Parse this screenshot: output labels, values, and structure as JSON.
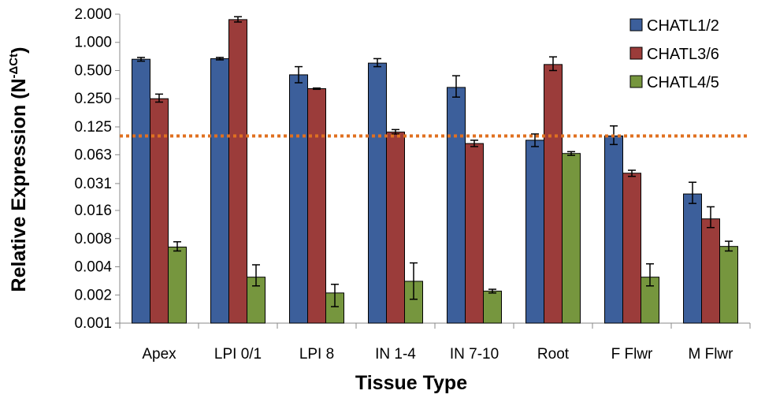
{
  "chart_data": {
    "type": "bar",
    "title": "",
    "xlabel": "Tissue Type",
    "ylabel": "Relative Expression (N",
    "ylabel_superscript": "-ΔCt",
    "ylabel_close": ")",
    "y_scale": "log2",
    "ylim": [
      0.001,
      2.0
    ],
    "yticks": [
      0.001,
      0.002,
      0.004,
      0.008,
      0.016,
      0.031,
      0.063,
      0.125,
      0.25,
      0.5,
      1.0,
      2.0
    ],
    "ytick_labels": [
      "0.001",
      "0.002",
      "0.004",
      "0.008",
      "0.016",
      "0.031",
      "0.063",
      "0.125",
      "0.250",
      "0.500",
      "1.000",
      "2.000"
    ],
    "categories": [
      "Apex",
      "LPI 0/1",
      "LPI 8",
      "IN 1-4",
      "IN 7-10",
      "Root",
      "F Flwr",
      "M Flwr"
    ],
    "series": [
      {
        "name": "CHATL1/2",
        "color": "#3c5f9b",
        "values": [
          0.66,
          0.67,
          0.45,
          0.6,
          0.33,
          0.09,
          0.1,
          0.024
        ],
        "err_low": [
          0.63,
          0.65,
          0.37,
          0.55,
          0.26,
          0.077,
          0.081,
          0.019
        ],
        "err_high": [
          0.69,
          0.69,
          0.55,
          0.67,
          0.44,
          0.105,
          0.128,
          0.032
        ]
      },
      {
        "name": "CHATL3/6",
        "color": "#9b3c3a",
        "values": [
          0.25,
          1.75,
          0.32,
          0.11,
          0.083,
          0.58,
          0.04,
          0.013
        ],
        "err_low": [
          0.23,
          1.65,
          0.315,
          0.105,
          0.077,
          0.5,
          0.037,
          0.0105
        ],
        "err_high": [
          0.28,
          1.88,
          0.325,
          0.117,
          0.09,
          0.7,
          0.043,
          0.0175
        ]
      },
      {
        "name": "CHATL4/5",
        "color": "#76963e",
        "values": [
          0.0065,
          0.0031,
          0.0021,
          0.0028,
          0.0022,
          0.065,
          0.0031,
          0.0066
        ],
        "err_low": [
          0.0059,
          0.0025,
          0.0015,
          0.0018,
          0.0021,
          0.062,
          0.0025,
          0.0059
        ],
        "err_high": [
          0.0074,
          0.0042,
          0.0026,
          0.0044,
          0.0023,
          0.068,
          0.0043,
          0.0075
        ]
      }
    ],
    "reference_line": {
      "value": 0.1,
      "color": "#e07020",
      "style": "dotted"
    },
    "legend_position": "top-right",
    "grid": false
  }
}
